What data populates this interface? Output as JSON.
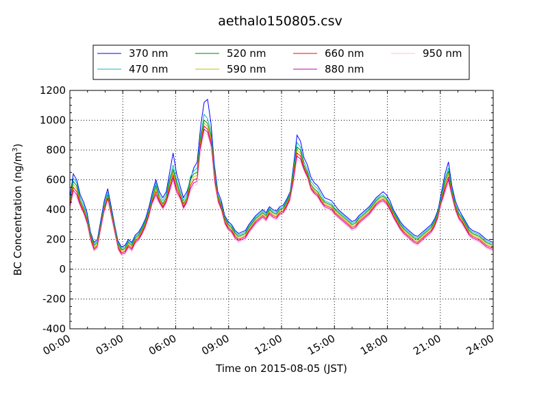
{
  "chart_data": {
    "type": "line",
    "title": "aethalo150805.csv",
    "xlabel": "Time on 2015-08-05 (JST)",
    "ylabel": "BC Concentration (ng/m",
    "ylabel_sup": "3",
    "ylabel_end": ")",
    "xlim": [
      "00:00",
      "24:00"
    ],
    "ylim": [
      -400,
      1200
    ],
    "x_ticks": [
      "00:00",
      "03:00",
      "06:00",
      "09:00",
      "12:00",
      "15:00",
      "18:00",
      "21:00",
      "24:00"
    ],
    "y_ticks": [
      -400,
      -200,
      0,
      200,
      400,
      600,
      800,
      1000,
      1200
    ],
    "grid": true,
    "legend_position": "top",
    "series": [
      {
        "name": "370 nm",
        "color": "#0000ff",
        "values": [
          480,
          640,
          600,
          500,
          450,
          380,
          250,
          180,
          200,
          330,
          460,
          540,
          420,
          300,
          190,
          150,
          160,
          200,
          180,
          230,
          250,
          290,
          340,
          420,
          520,
          600,
          520,
          480,
          520,
          650,
          780,
          640,
          560,
          480,
          520,
          600,
          680,
          720,
          960,
          1120,
          1140,
          980,
          700,
          520,
          460,
          360,
          320,
          300,
          260,
          240,
          250,
          260,
          300,
          330,
          360,
          380,
          400,
          380,
          420,
          400,
          390,
          420,
          430,
          470,
          520,
          700,
          900,
          860,
          750,
          700,
          620,
          580,
          560,
          520,
          480,
          470,
          460,
          430,
          400,
          380,
          360,
          340,
          320,
          330,
          360,
          380,
          400,
          420,
          450,
          480,
          500,
          520,
          500,
          460,
          400,
          360,
          320,
          290,
          270,
          250,
          230,
          220,
          240,
          260,
          280,
          300,
          340,
          400,
          520,
          640,
          720,
          560,
          460,
          400,
          360,
          320,
          280,
          260,
          250,
          240,
          220,
          200,
          190,
          180
        ]
      },
      {
        "name": "470 nm",
        "color": "#00bfbf",
        "values": [
          460,
          610,
          580,
          480,
          430,
          360,
          240,
          170,
          190,
          310,
          440,
          520,
          400,
          290,
          180,
          140,
          150,
          190,
          170,
          220,
          240,
          280,
          330,
          400,
          500,
          580,
          500,
          460,
          500,
          610,
          700,
          600,
          530,
          460,
          500,
          620,
          660,
          680,
          900,
          1040,
          1010,
          930,
          670,
          500,
          440,
          350,
          310,
          290,
          250,
          230,
          240,
          250,
          290,
          320,
          350,
          370,
          390,
          370,
          410,
          390,
          380,
          410,
          420,
          460,
          510,
          680,
          850,
          820,
          720,
          670,
          590,
          560,
          540,
          500,
          460,
          450,
          440,
          410,
          390,
          370,
          350,
          330,
          310,
          320,
          350,
          370,
          390,
          410,
          440,
          470,
          490,
          500,
          480,
          440,
          390,
          350,
          310,
          280,
          260,
          240,
          220,
          210,
          230,
          250,
          270,
          290,
          330,
          390,
          500,
          610,
          680,
          540,
          440,
          380,
          350,
          310,
          270,
          250,
          240,
          230,
          210,
          190,
          180,
          170
        ]
      },
      {
        "name": "520 nm",
        "color": "#008000",
        "values": [
          440,
          590,
          560,
          460,
          410,
          340,
          230,
          160,
          180,
          300,
          420,
          500,
          390,
          280,
          170,
          130,
          140,
          180,
          160,
          210,
          230,
          270,
          320,
          390,
          480,
          560,
          480,
          440,
          480,
          590,
          670,
          580,
          510,
          440,
          480,
          600,
          640,
          650,
          880,
          1000,
          980,
          900,
          650,
          490,
          430,
          340,
          300,
          280,
          240,
          220,
          230,
          240,
          280,
          310,
          340,
          360,
          380,
          360,
          400,
          380,
          370,
          400,
          410,
          450,
          500,
          660,
          820,
          800,
          700,
          650,
          570,
          540,
          520,
          480,
          450,
          440,
          430,
          400,
          380,
          360,
          340,
          320,
          300,
          310,
          340,
          360,
          380,
          400,
          430,
          460,
          480,
          490,
          470,
          430,
          380,
          340,
          300,
          270,
          250,
          230,
          210,
          200,
          220,
          240,
          260,
          280,
          320,
          380,
          480,
          590,
          660,
          520,
          430,
          370,
          340,
          300,
          260,
          240,
          230,
          220,
          200,
          180,
          170,
          160
        ]
      },
      {
        "name": "590 nm",
        "color": "#bfbf00",
        "values": [
          430,
          570,
          540,
          450,
          400,
          330,
          220,
          150,
          170,
          290,
          410,
          490,
          380,
          270,
          160,
          120,
          130,
          170,
          150,
          200,
          220,
          260,
          310,
          380,
          470,
          540,
          470,
          430,
          470,
          570,
          650,
          560,
          500,
          430,
          470,
          580,
          620,
          630,
          860,
          980,
          960,
          880,
          640,
          480,
          420,
          330,
          290,
          270,
          230,
          210,
          220,
          230,
          270,
          300,
          330,
          350,
          370,
          350,
          390,
          370,
          360,
          390,
          400,
          440,
          490,
          640,
          800,
          780,
          690,
          640,
          560,
          530,
          510,
          470,
          440,
          430,
          420,
          390,
          370,
          350,
          330,
          310,
          290,
          300,
          330,
          350,
          370,
          390,
          420,
          450,
          470,
          480,
          460,
          420,
          370,
          330,
          290,
          260,
          240,
          220,
          200,
          190,
          210,
          230,
          250,
          270,
          310,
          370,
          470,
          570,
          640,
          510,
          420,
          360,
          330,
          290,
          250,
          230,
          220,
          210,
          190,
          170,
          160,
          150
        ]
      },
      {
        "name": "660 nm",
        "color": "#ff0000",
        "values": [
          420,
          550,
          520,
          440,
          390,
          320,
          210,
          140,
          160,
          280,
          400,
          480,
          370,
          260,
          150,
          110,
          120,
          160,
          140,
          190,
          210,
          250,
          300,
          370,
          460,
          520,
          460,
          420,
          460,
          550,
          630,
          540,
          490,
          420,
          460,
          560,
          600,
          610,
          840,
          960,
          940,
          860,
          620,
          470,
          410,
          320,
          280,
          260,
          220,
          200,
          210,
          220,
          260,
          290,
          320,
          340,
          360,
          340,
          380,
          360,
          350,
          380,
          390,
          430,
          480,
          620,
          780,
          760,
          680,
          630,
          550,
          520,
          500,
          460,
          430,
          420,
          410,
          380,
          360,
          340,
          320,
          300,
          280,
          290,
          320,
          340,
          360,
          380,
          410,
          440,
          460,
          470,
          450,
          410,
          360,
          320,
          280,
          250,
          230,
          210,
          190,
          180,
          200,
          220,
          240,
          260,
          300,
          360,
          460,
          550,
          620,
          500,
          410,
          350,
          320,
          280,
          240,
          220,
          210,
          200,
          180,
          160,
          150,
          140
        ]
      },
      {
        "name": "880 nm",
        "color": "#bf00bf",
        "values": [
          410,
          530,
          500,
          430,
          380,
          310,
          200,
          130,
          150,
          270,
          390,
          470,
          360,
          250,
          140,
          100,
          110,
          150,
          130,
          180,
          200,
          240,
          290,
          360,
          450,
          500,
          450,
          410,
          450,
          530,
          610,
          520,
          480,
          410,
          450,
          540,
          580,
          590,
          820,
          940,
          920,
          840,
          600,
          460,
          400,
          310,
          270,
          250,
          210,
          190,
          200,
          210,
          250,
          280,
          310,
          330,
          350,
          330,
          370,
          350,
          340,
          370,
          380,
          420,
          470,
          600,
          760,
          740,
          670,
          620,
          540,
          510,
          490,
          450,
          420,
          410,
          400,
          370,
          350,
          330,
          310,
          290,
          270,
          280,
          310,
          330,
          350,
          370,
          400,
          430,
          450,
          460,
          440,
          400,
          350,
          310,
          270,
          240,
          220,
          200,
          180,
          170,
          190,
          210,
          230,
          250,
          290,
          350,
          450,
          530,
          600,
          490,
          400,
          340,
          310,
          270,
          230,
          210,
          200,
          190,
          170,
          150,
          140,
          130
        ]
      },
      {
        "name": "950 nm",
        "color": "#ffc0cb",
        "values": [
          400,
          510,
          480,
          420,
          370,
          300,
          190,
          120,
          140,
          260,
          380,
          460,
          350,
          240,
          130,
          90,
          100,
          140,
          120,
          170,
          190,
          230,
          280,
          350,
          440,
          480,
          440,
          400,
          440,
          510,
          590,
          500,
          470,
          400,
          440,
          520,
          560,
          570,
          800,
          920,
          900,
          820,
          580,
          450,
          390,
          300,
          260,
          240,
          200,
          180,
          190,
          200,
          240,
          270,
          300,
          320,
          340,
          320,
          360,
          340,
          330,
          360,
          370,
          410,
          460,
          580,
          740,
          720,
          660,
          610,
          530,
          500,
          480,
          440,
          410,
          400,
          390,
          360,
          340,
          320,
          300,
          280,
          260,
          270,
          300,
          320,
          340,
          360,
          390,
          420,
          440,
          450,
          430,
          390,
          340,
          300,
          260,
          230,
          210,
          190,
          170,
          160,
          180,
          200,
          220,
          240,
          280,
          340,
          440,
          510,
          580,
          480,
          390,
          330,
          300,
          260,
          220,
          200,
          190,
          180,
          160,
          140,
          130,
          120
        ]
      }
    ]
  }
}
